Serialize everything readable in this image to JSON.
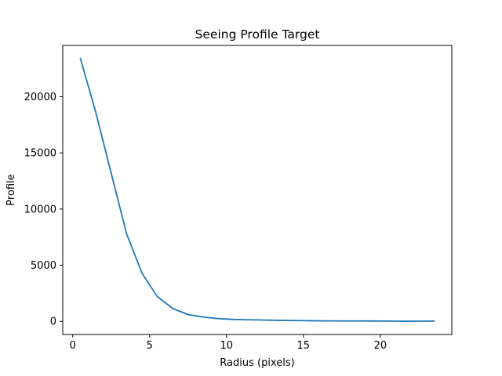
{
  "chart_data": {
    "type": "line",
    "title": "Seeing Profile Target",
    "xlabel": "Radius (pixels)",
    "ylabel": "Profile",
    "xlim": [
      -0.65,
      24.65
    ],
    "ylim": [
      -1170,
      24570
    ],
    "x_ticks": [
      0,
      5,
      10,
      15,
      20
    ],
    "x_tick_labels": [
      "0",
      "5",
      "10",
      "15",
      "20"
    ],
    "y_ticks": [
      0,
      5000,
      10000,
      15000,
      20000
    ],
    "y_tick_labels": [
      "0",
      "5000",
      "10000",
      "15000",
      "20000"
    ],
    "grid": false,
    "legend": "none",
    "series": [
      {
        "color": "#1f77b4",
        "x": [
          0.5,
          1.5,
          2.5,
          3.5,
          4.5,
          5.5,
          6.5,
          7.5,
          8.5,
          9.5,
          10.5,
          11.5,
          12.5,
          13.5,
          14.5,
          15.5,
          16.5,
          17.5,
          18.5,
          19.5,
          20.5,
          21.5,
          22.5,
          23.5
        ],
        "y": [
          23400,
          18600,
          13200,
          7800,
          4300,
          2200,
          1150,
          600,
          380,
          240,
          170,
          140,
          110,
          90,
          70,
          55,
          40,
          35,
          35,
          30,
          25,
          10,
          15,
          25
        ]
      }
    ]
  }
}
